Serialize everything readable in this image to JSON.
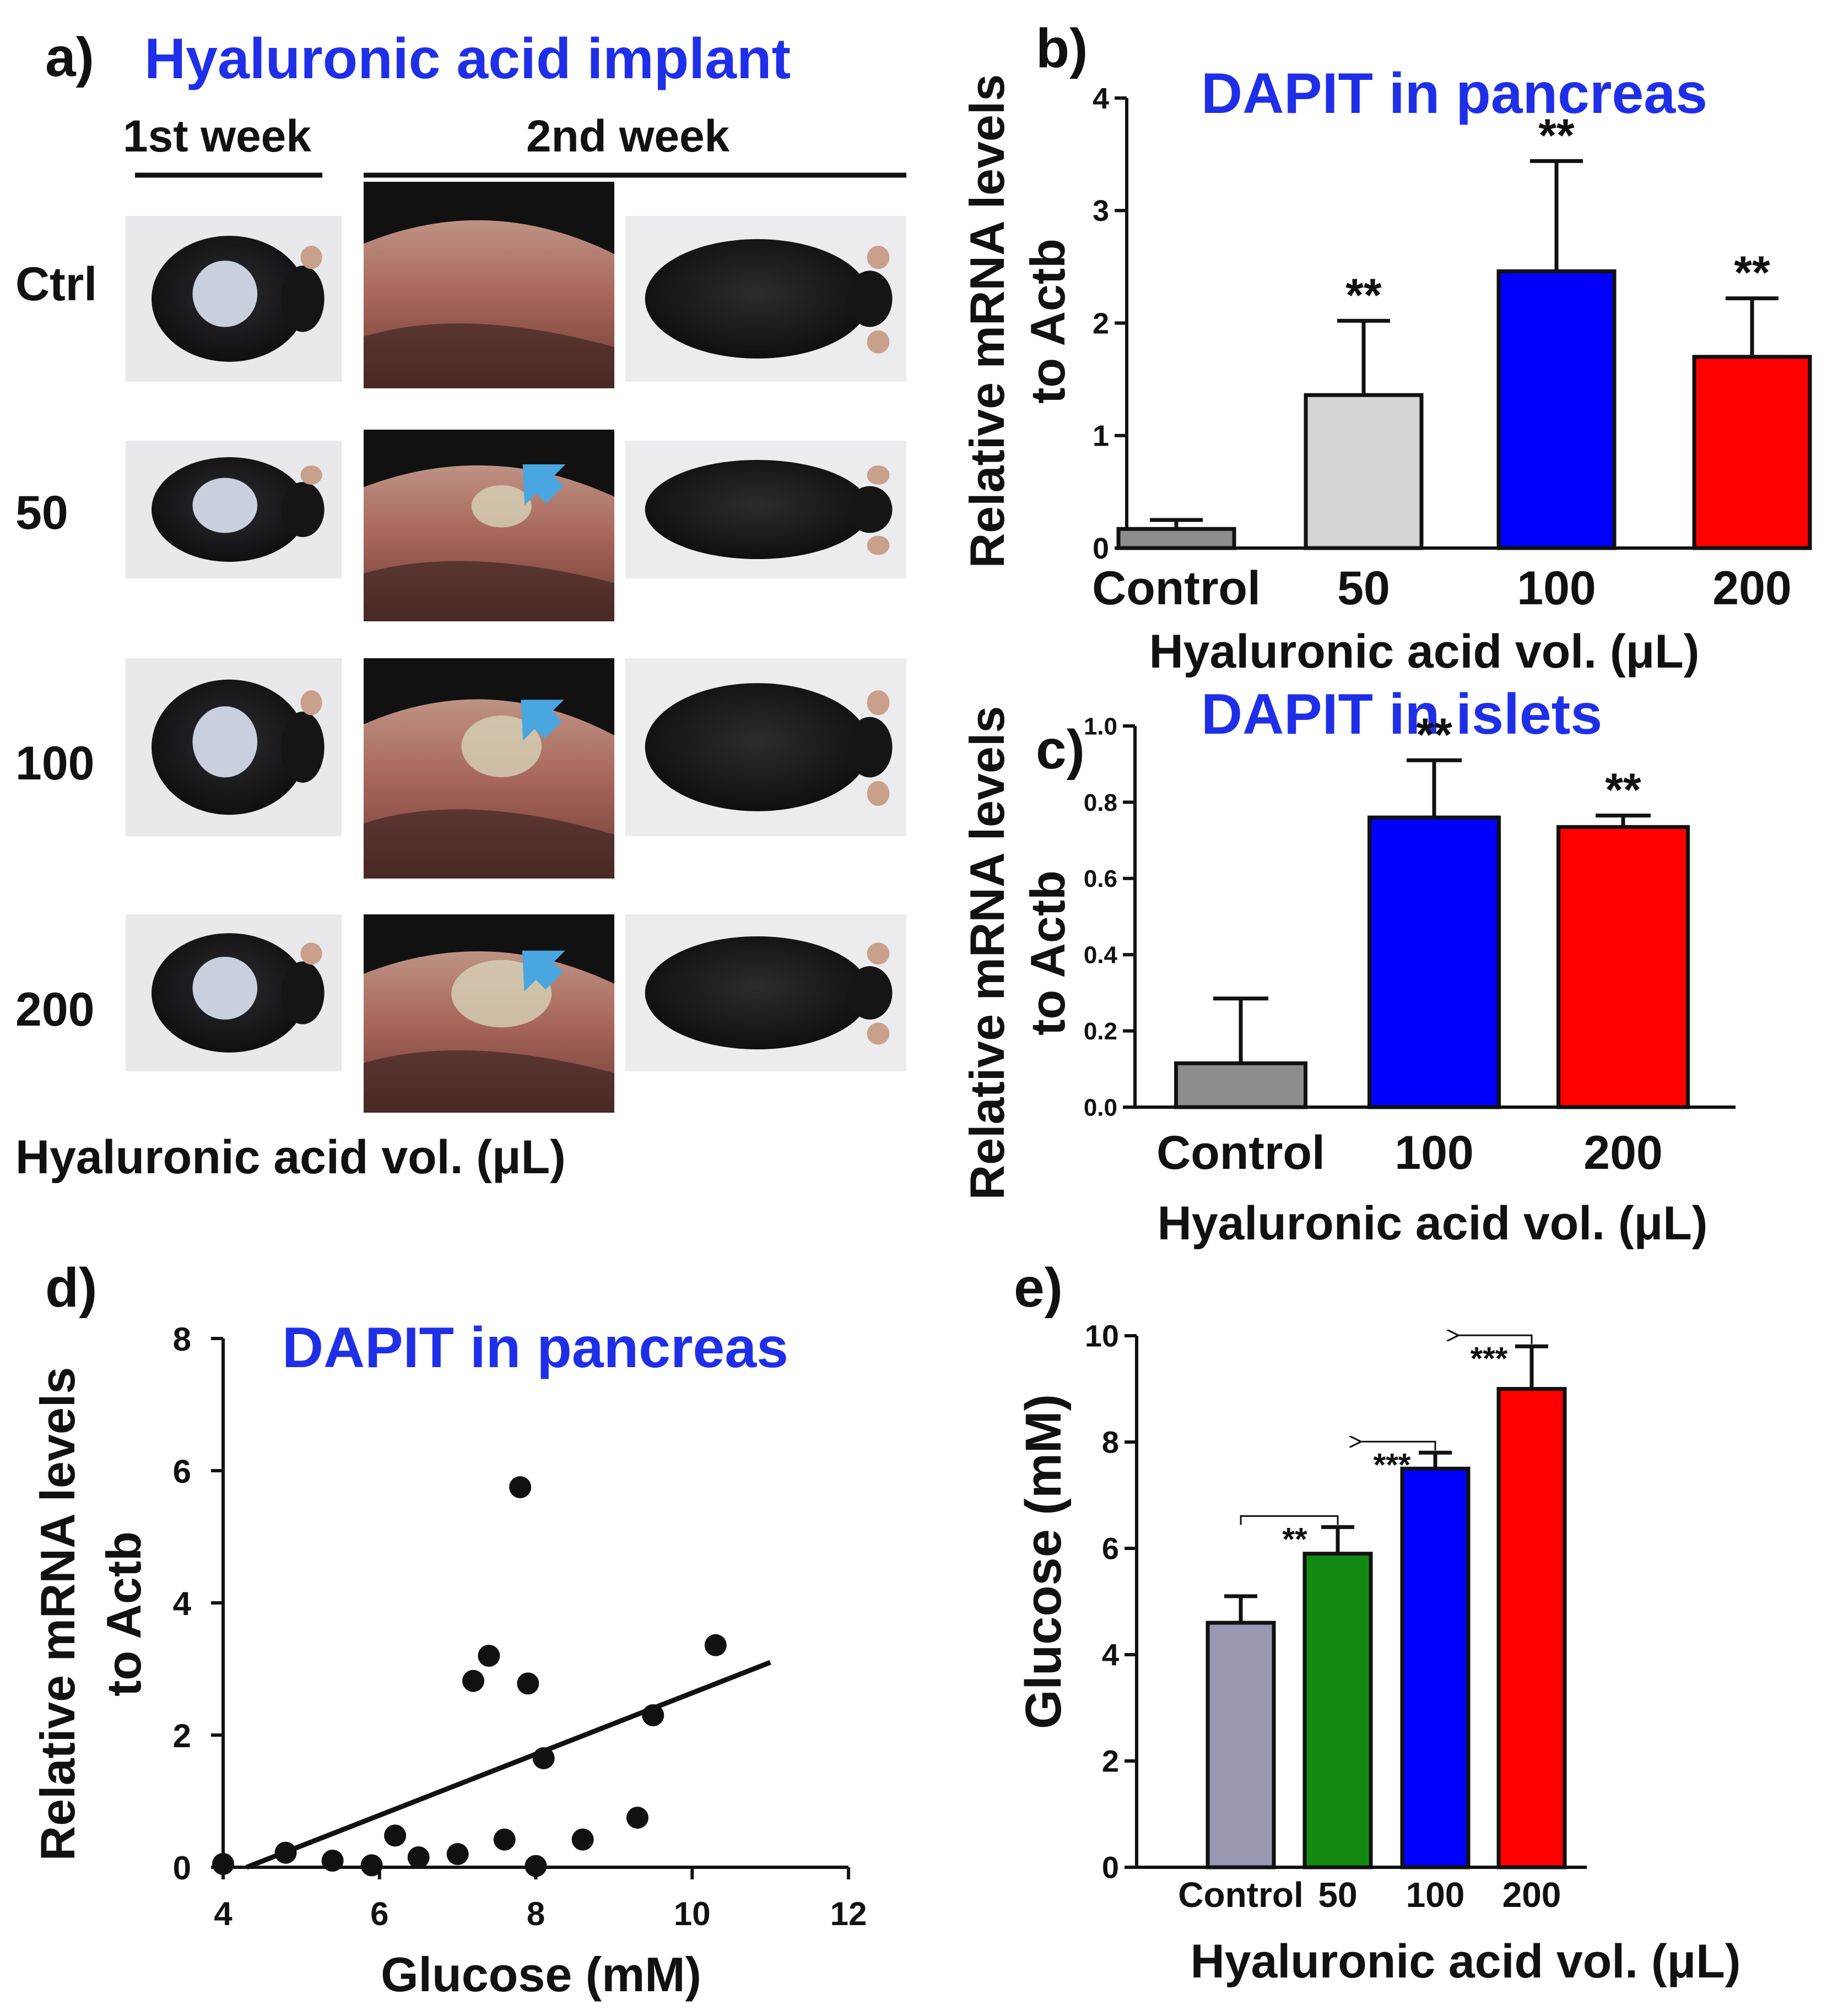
{
  "panel_a": {
    "letter": "a)",
    "title": "Hyaluronic acid implant",
    "week1": "1st week",
    "week2": "2nd week",
    "rows": [
      "Ctrl",
      "50",
      "100",
      "200"
    ],
    "xlabel": "Hyaluronic acid vol. (μL)"
  },
  "colors": {
    "title_blue": "#1f2fe8",
    "control_gray": "#8c8c8c",
    "light_gray": "#d4d4d4",
    "blue": "#0000ff",
    "red": "#ff0000",
    "green": "#128a12",
    "lavender": "#9898b2",
    "arrow_blue": "#4aa6e0"
  },
  "chart_data": [
    {
      "id": "b",
      "letter": "b)",
      "type": "bar",
      "title": "DAPIT in pancreas",
      "categories": [
        "Control",
        "50",
        "100",
        "200"
      ],
      "values": [
        0.17,
        1.36,
        2.46,
        1.7
      ],
      "errors": [
        0.08,
        0.66,
        0.98,
        0.52
      ],
      "significance": [
        "",
        "**",
        "**",
        "**"
      ],
      "ylim": [
        0,
        4
      ],
      "yticks": [
        "0",
        "1",
        "2",
        "3",
        "4"
      ],
      "ylabel": "Relative mRNA levels",
      "ylabel2": "to Actb",
      "xlabel": "Hyaluronic acid vol. (μL)"
    },
    {
      "id": "c",
      "letter": "c)",
      "type": "bar",
      "title": "DAPIT in islets",
      "categories": [
        "Control",
        "100",
        "200"
      ],
      "values": [
        0.115,
        0.76,
        0.735
      ],
      "errors": [
        0.17,
        0.15,
        0.03
      ],
      "significance": [
        "",
        "**",
        "**"
      ],
      "ylim": [
        0,
        1.0
      ],
      "yticks": [
        "0.0",
        "0.2",
        "0.4",
        "0.6",
        "0.8",
        "1.0"
      ],
      "ylabel": "Relative mRNA levels",
      "ylabel2": "to Actb",
      "xlabel": "Hyaluronic acid vol. (μL)"
    },
    {
      "id": "d",
      "letter": "d)",
      "type": "scatter",
      "title": "DAPIT in pancreas",
      "x": [
        4.0,
        4.8,
        5.4,
        5.9,
        6.2,
        6.5,
        7.0,
        7.2,
        7.4,
        7.6,
        7.8,
        7.9,
        8.0,
        8.1,
        8.6,
        9.3,
        9.5,
        10.3
      ],
      "y": [
        0.05,
        0.22,
        0.1,
        0.03,
        0.48,
        0.15,
        0.2,
        2.82,
        3.2,
        0.42,
        5.75,
        2.78,
        0.02,
        1.65,
        0.42,
        0.75,
        2.3,
        3.36
      ],
      "fit_line": {
        "x": [
          4.3,
          11.0
        ],
        "y": [
          0.0,
          3.1
        ]
      },
      "xlim": [
        4,
        12
      ],
      "ylim": [
        0,
        8
      ],
      "xticks": [
        "4",
        "6",
        "8",
        "10",
        "12"
      ],
      "yticks": [
        "0",
        "2",
        "4",
        "6",
        "8"
      ],
      "xlabel": "Glucose (mM)",
      "ylabel": "Relative mRNA levels",
      "ylabel2": "to Actb"
    },
    {
      "id": "e",
      "letter": "e)",
      "type": "bar",
      "categories": [
        "Control",
        "50",
        "100",
        "200"
      ],
      "values": [
        4.6,
        5.9,
        7.5,
        9.0
      ],
      "errors": [
        0.5,
        0.5,
        0.3,
        0.8
      ],
      "ylim": [
        0,
        10
      ],
      "yticks": [
        "0",
        "2",
        "4",
        "6",
        "8",
        "10"
      ],
      "ylabel": "Glucose (mM)",
      "xlabel": "Hyaluronic acid vol. (μL)",
      "comparisons": [
        {
          "from": 0,
          "to": 1,
          "label": "**"
        },
        {
          "from": 1,
          "to": 2,
          "label": "***"
        },
        {
          "from": 2,
          "to": 3,
          "label": "***"
        }
      ]
    }
  ]
}
